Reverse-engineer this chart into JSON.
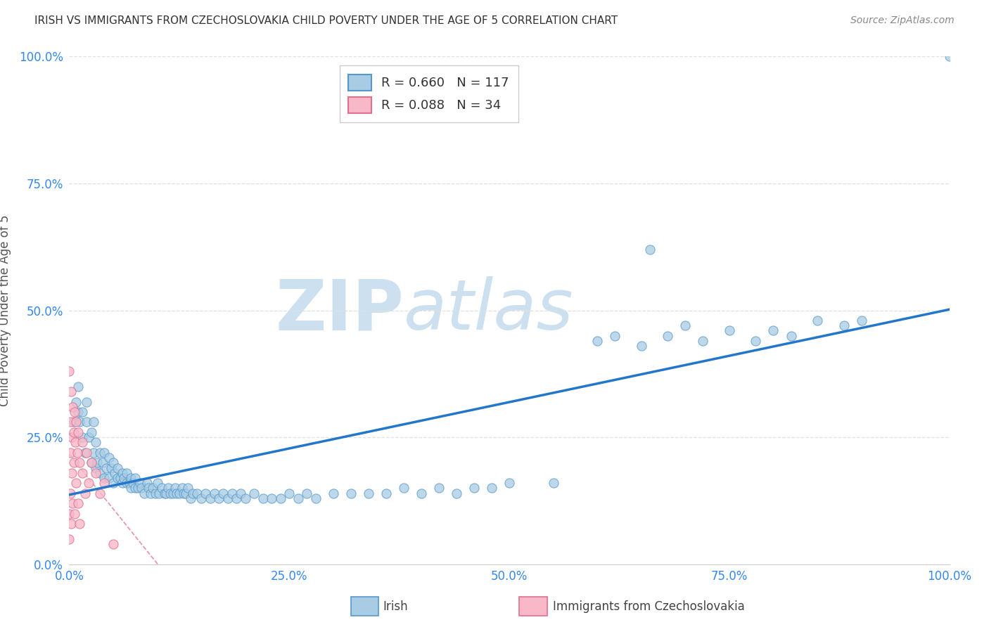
{
  "title": "IRISH VS IMMIGRANTS FROM CZECHOSLOVAKIA CHILD POVERTY UNDER THE AGE OF 5 CORRELATION CHART",
  "source": "Source: ZipAtlas.com",
  "ylabel": "Child Poverty Under the Age of 5",
  "legend_label_1": "Irish",
  "legend_label_2": "Immigrants from Czechoslovakia",
  "R1": 0.66,
  "N1": 117,
  "R2": 0.088,
  "N2": 34,
  "blue_fill": "#a8cce4",
  "blue_edge": "#5599cc",
  "pink_fill": "#f8b8c8",
  "pink_edge": "#e07090",
  "regression_blue": "#2277cc",
  "regression_pink": "#dd6677",
  "diag_color": "#ddaaaa",
  "watermark_color": "#cce0f0",
  "xlim": [
    0.0,
    1.0
  ],
  "ylim": [
    0.0,
    1.0
  ],
  "xticks": [
    0.0,
    0.25,
    0.5,
    0.75,
    1.0
  ],
  "yticks": [
    0.0,
    0.25,
    0.5,
    0.75,
    1.0
  ],
  "xticklabels": [
    "0.0%",
    "25.0%",
    "50.0%",
    "75.0%",
    "100.0%"
  ],
  "yticklabels": [
    "0.0%",
    "25.0%",
    "50.0%",
    "75.0%",
    "100.0%"
  ],
  "background_color": "#ffffff",
  "grid_color": "#e0e0e0",
  "blue_x": [
    0.005,
    0.008,
    0.01,
    0.01,
    0.012,
    0.015,
    0.015,
    0.018,
    0.02,
    0.02,
    0.022,
    0.025,
    0.025,
    0.028,
    0.028,
    0.03,
    0.03,
    0.032,
    0.035,
    0.035,
    0.038,
    0.04,
    0.04,
    0.042,
    0.045,
    0.045,
    0.048,
    0.05,
    0.05,
    0.052,
    0.055,
    0.055,
    0.058,
    0.06,
    0.06,
    0.062,
    0.065,
    0.065,
    0.068,
    0.07,
    0.07,
    0.072,
    0.075,
    0.075,
    0.078,
    0.08,
    0.082,
    0.085,
    0.088,
    0.09,
    0.092,
    0.095,
    0.098,
    0.1,
    0.102,
    0.105,
    0.108,
    0.11,
    0.112,
    0.115,
    0.118,
    0.12,
    0.122,
    0.125,
    0.128,
    0.13,
    0.132,
    0.135,
    0.138,
    0.14,
    0.145,
    0.15,
    0.155,
    0.16,
    0.165,
    0.17,
    0.175,
    0.18,
    0.185,
    0.19,
    0.195,
    0.2,
    0.21,
    0.22,
    0.23,
    0.24,
    0.25,
    0.26,
    0.27,
    0.28,
    0.3,
    0.32,
    0.34,
    0.36,
    0.38,
    0.4,
    0.42,
    0.44,
    0.46,
    0.48,
    0.5,
    0.55,
    0.6,
    0.62,
    0.65,
    0.66,
    0.68,
    0.7,
    0.72,
    0.75,
    0.78,
    0.8,
    0.82,
    0.85,
    0.88,
    0.9,
    1.0
  ],
  "blue_y": [
    0.28,
    0.32,
    0.3,
    0.35,
    0.28,
    0.25,
    0.3,
    0.22,
    0.28,
    0.32,
    0.25,
    0.2,
    0.26,
    0.22,
    0.28,
    0.19,
    0.24,
    0.2,
    0.18,
    0.22,
    0.2,
    0.17,
    0.22,
    0.19,
    0.17,
    0.21,
    0.19,
    0.16,
    0.2,
    0.18,
    0.17,
    0.19,
    0.17,
    0.16,
    0.18,
    0.17,
    0.16,
    0.18,
    0.16,
    0.15,
    0.17,
    0.16,
    0.15,
    0.17,
    0.15,
    0.16,
    0.15,
    0.14,
    0.16,
    0.15,
    0.14,
    0.15,
    0.14,
    0.16,
    0.14,
    0.15,
    0.14,
    0.14,
    0.15,
    0.14,
    0.14,
    0.15,
    0.14,
    0.14,
    0.15,
    0.14,
    0.14,
    0.15,
    0.13,
    0.14,
    0.14,
    0.13,
    0.14,
    0.13,
    0.14,
    0.13,
    0.14,
    0.13,
    0.14,
    0.13,
    0.14,
    0.13,
    0.14,
    0.13,
    0.13,
    0.13,
    0.14,
    0.13,
    0.14,
    0.13,
    0.14,
    0.14,
    0.14,
    0.14,
    0.15,
    0.14,
    0.15,
    0.14,
    0.15,
    0.15,
    0.16,
    0.16,
    0.44,
    0.45,
    0.43,
    0.62,
    0.45,
    0.47,
    0.44,
    0.46,
    0.44,
    0.46,
    0.45,
    0.48,
    0.47,
    0.48,
    1.0
  ],
  "pink_x": [
    0.0,
    0.0,
    0.0,
    0.001,
    0.001,
    0.001,
    0.002,
    0.002,
    0.003,
    0.003,
    0.004,
    0.004,
    0.005,
    0.005,
    0.006,
    0.006,
    0.007,
    0.008,
    0.008,
    0.009,
    0.01,
    0.01,
    0.012,
    0.012,
    0.015,
    0.015,
    0.018,
    0.02,
    0.022,
    0.025,
    0.03,
    0.035,
    0.04,
    0.05
  ],
  "pink_y": [
    0.05,
    0.1,
    0.38,
    0.14,
    0.22,
    0.28,
    0.34,
    0.08,
    0.18,
    0.25,
    0.31,
    0.12,
    0.2,
    0.26,
    0.3,
    0.1,
    0.24,
    0.28,
    0.16,
    0.22,
    0.26,
    0.12,
    0.2,
    0.08,
    0.18,
    0.24,
    0.14,
    0.22,
    0.16,
    0.2,
    0.18,
    0.14,
    0.16,
    0.04
  ]
}
